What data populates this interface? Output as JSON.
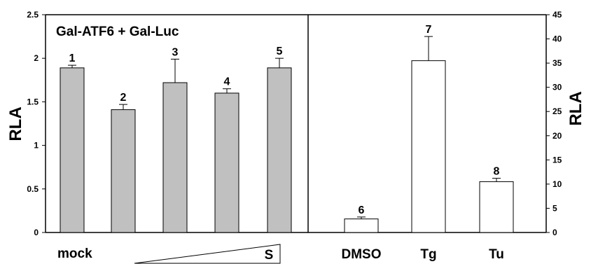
{
  "chart_data": [
    {
      "type": "bar",
      "panel": "left",
      "title": "Gal-ATF6 + Gal-Luc",
      "ylabel": "RLA",
      "ylim": [
        0,
        2.5
      ],
      "yticks": [
        "0",
        "0.5",
        "1",
        "1.5",
        "2",
        "2.5"
      ],
      "x_labels": [
        "mock",
        "S"
      ],
      "bar_color": "#c0c0c0",
      "bars": [
        {
          "label": "1",
          "value": 1.89,
          "error": 0.03
        },
        {
          "label": "2",
          "value": 1.41,
          "error": 0.06
        },
        {
          "label": "3",
          "value": 1.72,
          "error": 0.27
        },
        {
          "label": "4",
          "value": 1.6,
          "error": 0.05
        },
        {
          "label": "5",
          "value": 1.89,
          "error": 0.11
        }
      ]
    },
    {
      "type": "bar",
      "panel": "right",
      "ylabel": "RLA",
      "ylim": [
        0,
        45
      ],
      "yticks": [
        "0",
        "5",
        "10",
        "15",
        "20",
        "25",
        "30",
        "35",
        "40",
        "45"
      ],
      "axis_side": "right",
      "bar_color": "#ffffff",
      "categories": [
        "DMSO",
        "Tg",
        "Tu"
      ],
      "bars": [
        {
          "label": "6",
          "category": "DMSO",
          "value": 2.8,
          "error": 0.4
        },
        {
          "label": "7",
          "category": "Tg",
          "value": 35.5,
          "error": 5.0
        },
        {
          "label": "8",
          "category": "Tu",
          "value": 10.5,
          "error": 0.7
        }
      ]
    }
  ]
}
